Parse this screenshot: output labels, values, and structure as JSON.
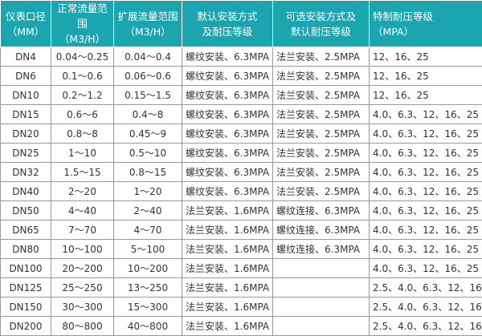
{
  "colors": {
    "header_bg": "#1ba5ae"
  },
  "headers": [
    [
      "仪表口径",
      "（MM）"
    ],
    [
      "正常流量范围",
      "（M3/H）"
    ],
    [
      "扩展流量范围",
      "（M3/H）"
    ],
    [
      "默认安装方式",
      "及耐压等级"
    ],
    [
      "可选安装方式及",
      "默认耐压等级"
    ],
    [
      "特制耐压等级",
      "（MPA）"
    ]
  ],
  "rows": [
    [
      "DN4",
      "0.04～0.25",
      "0.04～0.4",
      "螺纹安装、6.3MPA",
      "法兰安装、2.5MPA",
      "12、16、25"
    ],
    [
      "DN6",
      "0.1～0.6",
      "0.06～0.6",
      "螺纹安装、6.3MPA",
      "法兰安装、2.5MPA",
      "12、16、25"
    ],
    [
      "DN10",
      "0.2～1.2",
      "0.15～1.5",
      "螺纹安装、6.3MPA",
      "法兰安装、2.5MPA",
      "12、16、25"
    ],
    [
      "DN15",
      "0.6～6",
      "0.4～8",
      "螺纹安装、6.3MPA",
      "法兰安装、2.5MPA",
      "4.0、6.3、12、16、25"
    ],
    [
      "DN20",
      "0.8～8",
      "0.45～9",
      "螺纹安装、6.3MPA",
      "法兰安装、2.5MPA",
      "4.0、6.3、12、16、25"
    ],
    [
      "DN25",
      "1～10",
      "0.5～10",
      "螺纹安装、6.3MPA",
      "法兰安装、2.5MPA",
      "4.0、6.3、12、16、25"
    ],
    [
      "DN32",
      "1.5～15",
      "0.8～15",
      "螺纹安装、6.3MPA",
      "法兰安装、2.5MPA",
      "4.0、6.3、12、16、25"
    ],
    [
      "DN40",
      "2～20",
      "1～20",
      "螺纹安装、6.3MPA",
      "法兰安装、2.5MPA",
      "4.0、6.3、12、16、25"
    ],
    [
      "DN50",
      "4～40",
      "2～40",
      "法兰安装、1.6MPA",
      "螺纹连接、6.3MPA",
      "4.0、6.3、12、16、25"
    ],
    [
      "DN65",
      "7～70",
      "4～70",
      "法兰安装、1.6MPA",
      "螺纹连接、6.3MPA",
      "4.0、6.3、12、16、25"
    ],
    [
      "DN80",
      "10～100",
      "5～100",
      "法兰安装、1.6MPA",
      "螺纹连接、6.3MPA",
      "4.0、6.3、12、16、25"
    ],
    [
      "DN100",
      "20～200",
      "10～200",
      "法兰安装、1.6MPA",
      "",
      "4.0、6.3、12、16、25"
    ],
    [
      "DN125",
      "25～250",
      "13～250",
      "法兰安装、1.6MPA",
      "",
      "2.5、4.0、6.3、12、16"
    ],
    [
      "DN150",
      "30～300",
      "15～300",
      "法兰安装、1.6MPA",
      "",
      "2.5、4.0、6.3、12、16"
    ],
    [
      "DN200",
      "80～800",
      "40～800",
      "法兰安装、1.6MPA",
      "",
      "2.5、4.0、6.3、12、16"
    ]
  ]
}
